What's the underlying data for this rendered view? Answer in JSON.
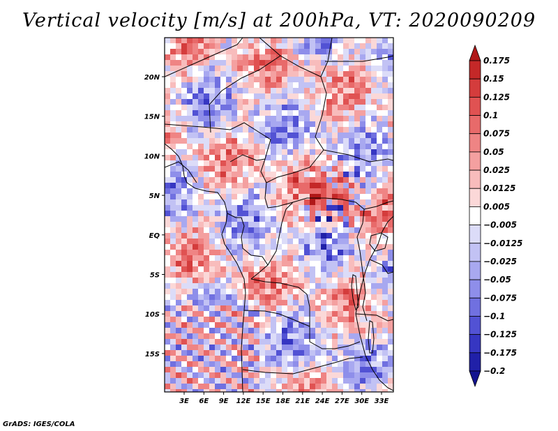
{
  "title": "Vertical velocity [m/s] at 200hPa, VT: 2020090209",
  "footer": "GrADS: IGES/COLA",
  "map": {
    "lat_labels": [
      "20N",
      "15N",
      "10N",
      "5N",
      "EQ",
      "5S",
      "10S",
      "15S"
    ],
    "lon_labels": [
      "3E",
      "6E",
      "9E",
      "12E",
      "15E",
      "18E",
      "21E",
      "24E",
      "27E",
      "30E",
      "33E"
    ]
  },
  "colorbar": {
    "labels": [
      "0.175",
      "0.15",
      "0.125",
      "0.1",
      "0.075",
      "0.05",
      "0.025",
      "0.0125",
      "0.005",
      "−0.005",
      "−0.0125",
      "−0.025",
      "−0.05",
      "−0.075",
      "−0.1",
      "−0.125",
      "−0.175",
      "−0.2"
    ],
    "colors": [
      "#b01818",
      "#c42828",
      "#d43c3c",
      "#e05252",
      "#e86a6a",
      "#ef8484",
      "#f4a0a0",
      "#f8bcbc",
      "#fbd8d8",
      "#ffffff",
      "#dcdcf8",
      "#c2c2f4",
      "#a8a8f0",
      "#8e8eea",
      "#7070e0",
      "#5252d4",
      "#3636c2",
      "#2020a8",
      "#141490"
    ]
  }
}
